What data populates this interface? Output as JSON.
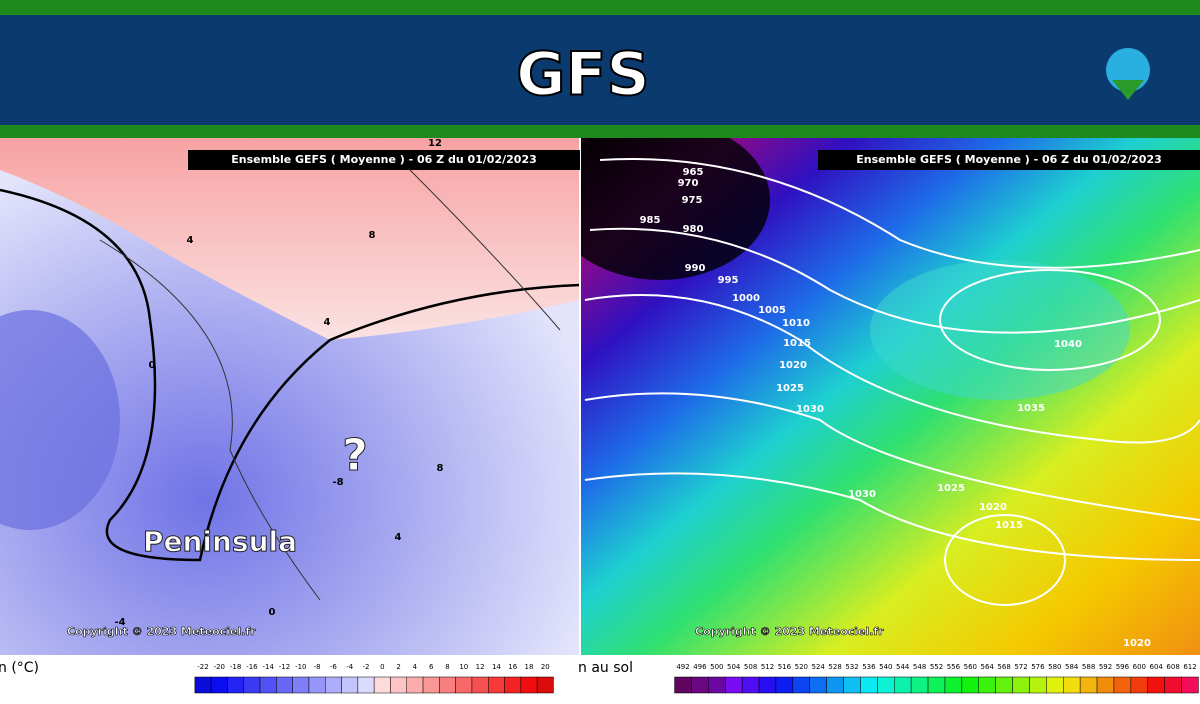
{
  "header": {
    "title": "GFS"
  },
  "maps": [
    {
      "title": "Ensemble GEFS  ( Moyenne )  -  06 Z du 01/02/2023",
      "copyright": "Copyright © 2023 Meteociel.fr",
      "annotations": [
        "Peninsula",
        "?"
      ],
      "contour_labels": [
        "12",
        "8",
        "4",
        "4",
        "0",
        "8",
        "-8",
        "4",
        "0",
        "-4"
      ],
      "legend": {
        "label": "n (°C)",
        "scale": [
          -22,
          -20,
          -18,
          -16,
          -14,
          -12,
          -10,
          -8,
          -6,
          -4,
          -2,
          0,
          2,
          4,
          6,
          8,
          10,
          12,
          14,
          16,
          18,
          20
        ]
      }
    },
    {
      "title": "Ensemble GEFS  ( Moyenne )  -  06 Z du 01/02/2023",
      "copyright": "Copyright © 2023 Meteociel.fr",
      "contour_labels": [
        "965",
        "970",
        "975",
        "980",
        "985",
        "990",
        "995",
        "1000",
        "1005",
        "1010",
        "1015",
        "1020",
        "1025",
        "1030",
        "1030",
        "1025",
        "1020",
        "1015",
        "1035",
        "1040",
        "1020"
      ],
      "legend": {
        "label": "n au sol",
        "scale": [
          492,
          496,
          500,
          504,
          508,
          512,
          516,
          520,
          524,
          528,
          532,
          536,
          540,
          544,
          548,
          552,
          556,
          560,
          564,
          568,
          572,
          576,
          580,
          584,
          588,
          592,
          596,
          600,
          604,
          608,
          612
        ]
      }
    }
  ]
}
